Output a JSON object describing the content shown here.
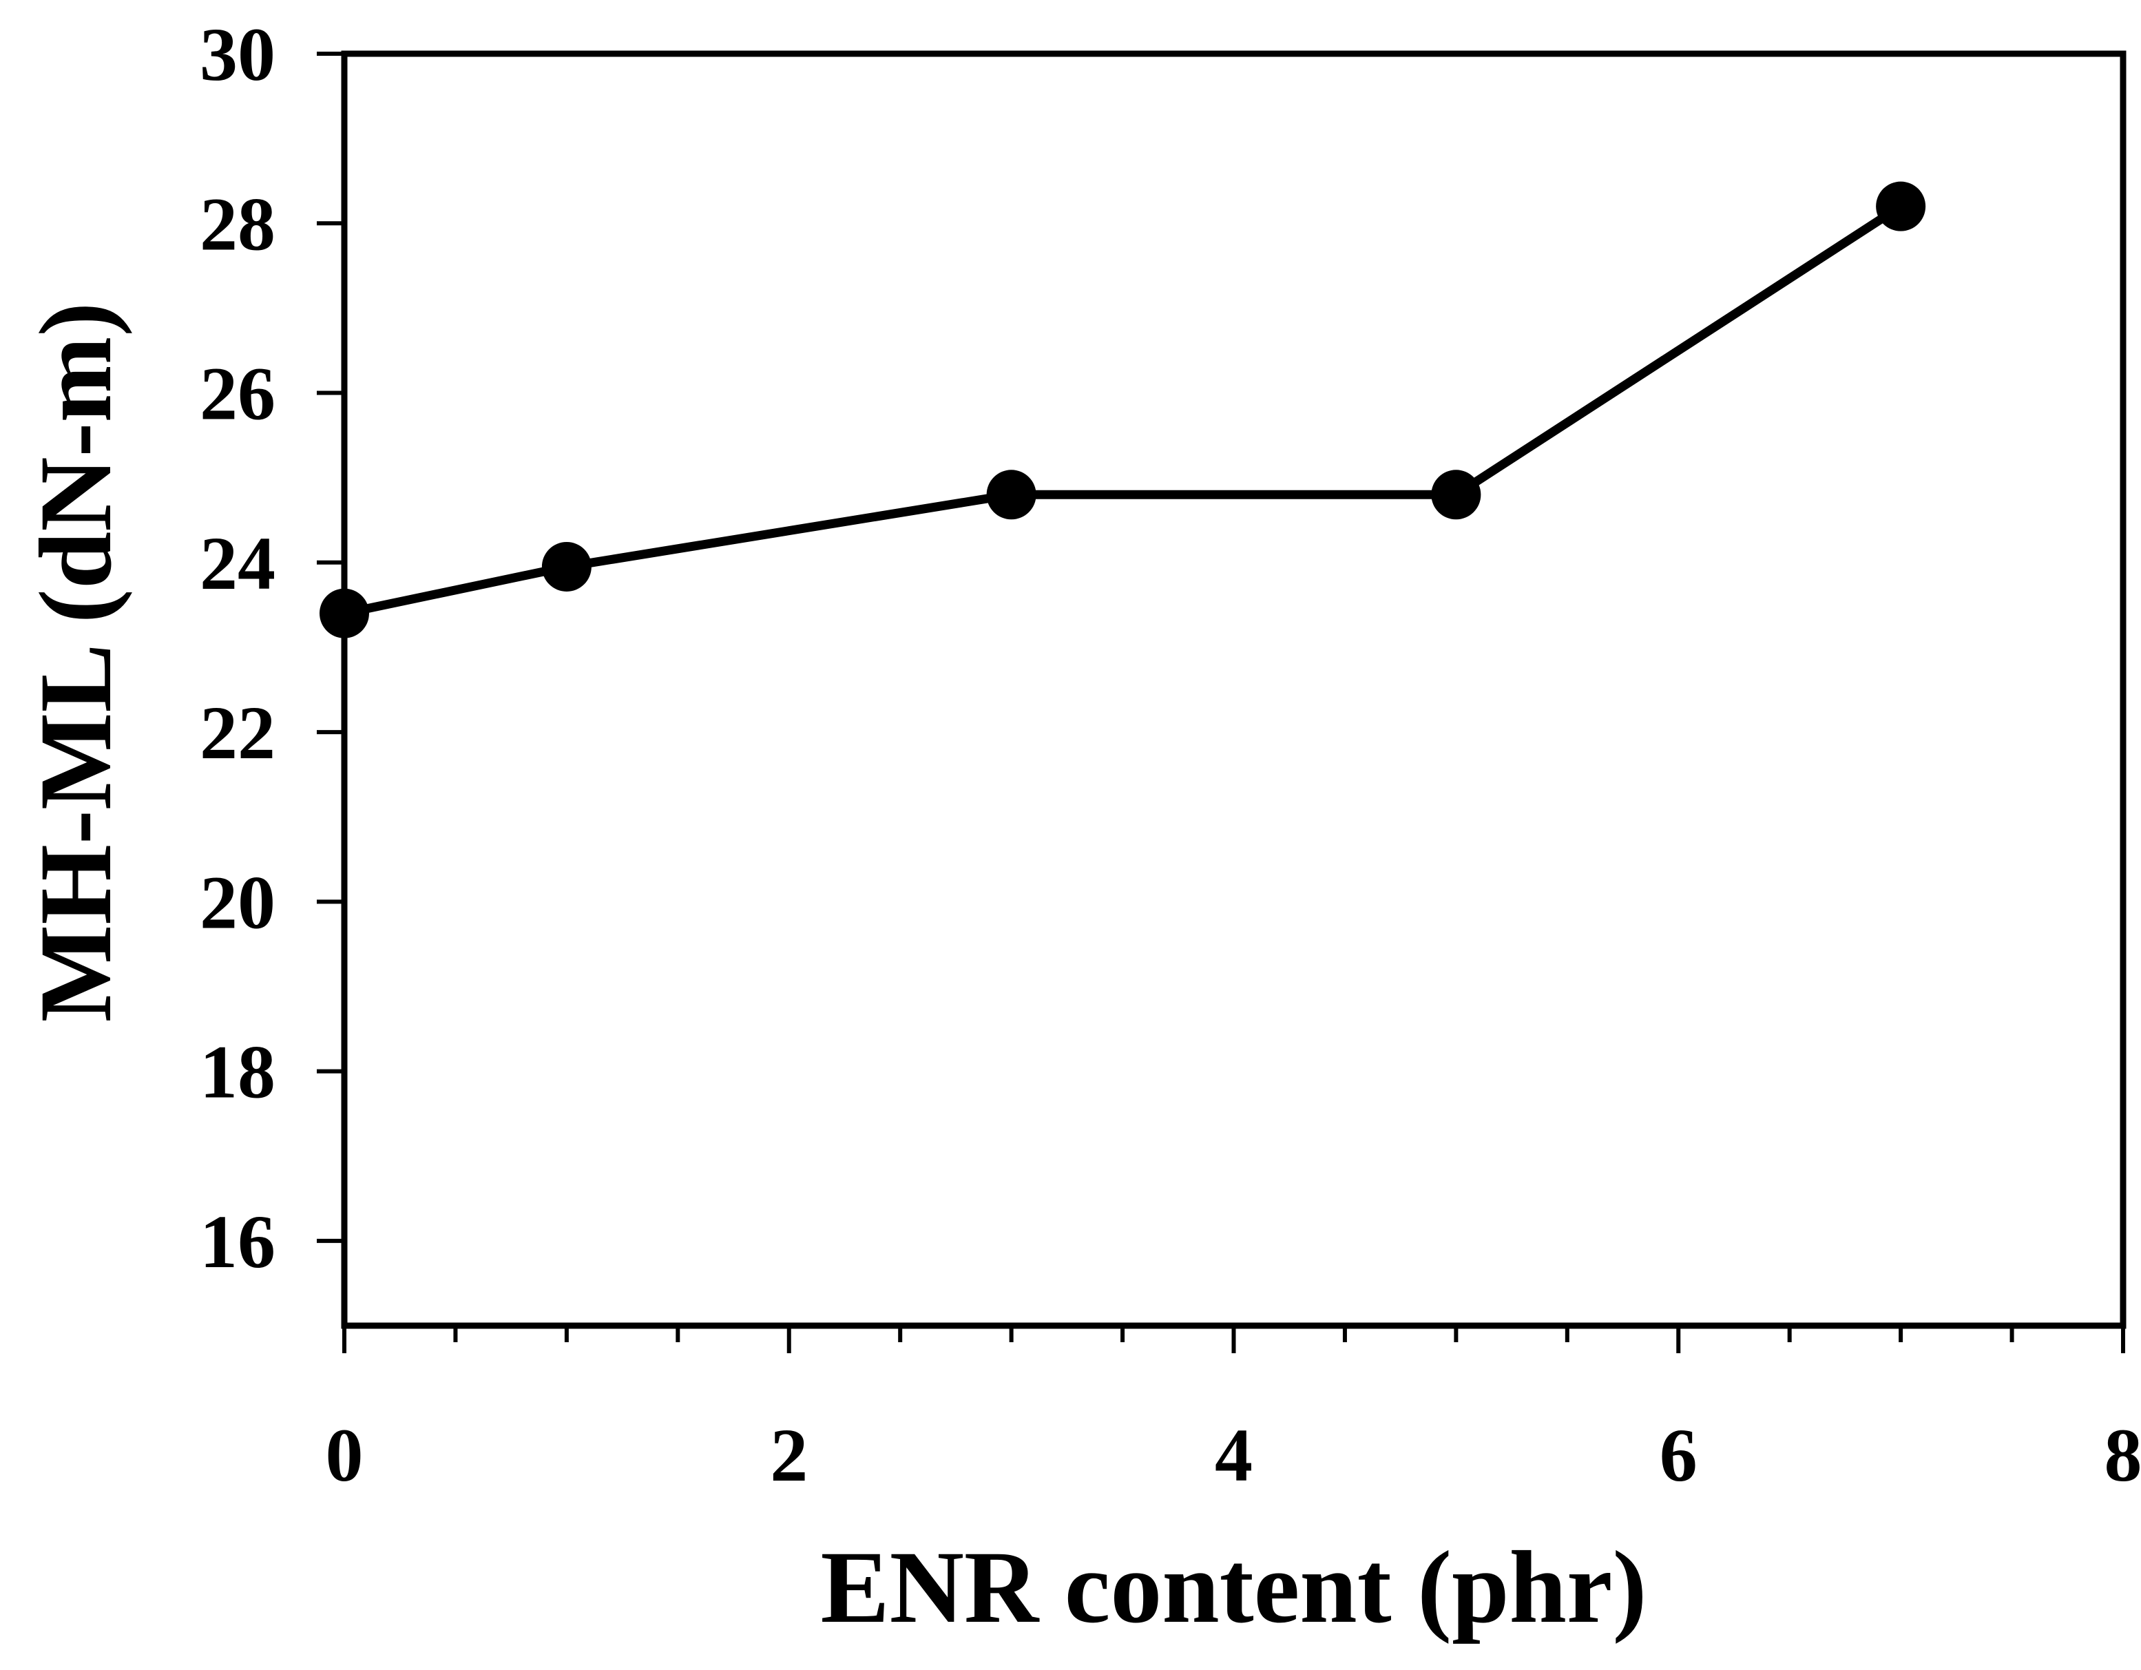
{
  "chart_data": {
    "type": "line",
    "title": "",
    "xlabel": "ENR content (phr)",
    "ylabel": "MH-ML (dN-m)",
    "xlim": [
      0,
      8
    ],
    "ylim": [
      15,
      30
    ],
    "x_ticks": [
      "0",
      "2",
      "4",
      "6",
      "8"
    ],
    "y_ticks": [
      "16",
      "18",
      "20",
      "22",
      "24",
      "26",
      "28",
      "30"
    ],
    "grid": false,
    "series": [
      {
        "x": [
          0,
          1,
          3,
          5,
          7
        ],
        "y": [
          23.4,
          23.95,
          24.8,
          24.8,
          28.2
        ],
        "color": "#000000",
        "marker": "filled-circle"
      }
    ]
  }
}
